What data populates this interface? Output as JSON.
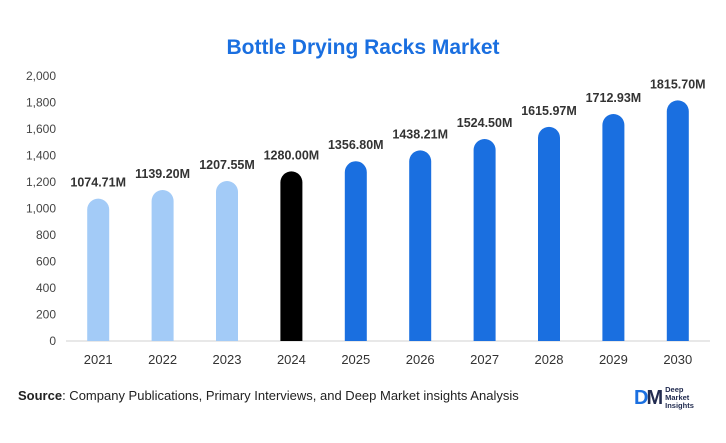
{
  "chart_data": {
    "type": "bar",
    "title": "Bottle Drying Racks Market",
    "xlabel": "",
    "ylabel": "",
    "categories": [
      "2021",
      "2022",
      "2023",
      "2024",
      "2025",
      "2026",
      "2027",
      "2028",
      "2029",
      "2030"
    ],
    "values": [
      1074.71,
      1139.2,
      1207.55,
      1280.0,
      1356.8,
      1438.21,
      1524.5,
      1615.97,
      1712.93,
      1815.7
    ],
    "data_labels": [
      "1074.71M",
      "1139.20M",
      "1207.55M",
      "1280.00M",
      "1356.80M",
      "1438.21M",
      "1524.50M",
      "1615.97M",
      "1712.93M",
      "1815.70M"
    ],
    "ylim": [
      0,
      2000
    ],
    "yticks": [
      0,
      200,
      400,
      600,
      800,
      1000,
      1200,
      1400,
      1600,
      1800,
      2000
    ],
    "ytick_labels": [
      "0",
      "200",
      "400",
      "600",
      "800",
      "1,000",
      "1,200",
      "1,400",
      "1,600",
      "1,800",
      "2,000"
    ],
    "grid": false,
    "legend": "none",
    "bar_colors": [
      "#a3cbf7",
      "#a3cbf7",
      "#a3cbf7",
      "#000000",
      "#1a6fe0",
      "#1a6fe0",
      "#1a6fe0",
      "#1a6fe0",
      "#1a6fe0",
      "#1a6fe0"
    ]
  },
  "source": {
    "key": "Source",
    "text": ": Company Publications, Primary Interviews, and Deep Market insights Analysis"
  },
  "logo": {
    "mark_d": "D",
    "mark_m": "M",
    "line1": "Deep",
    "line2": "Market",
    "line3": "Insights"
  }
}
